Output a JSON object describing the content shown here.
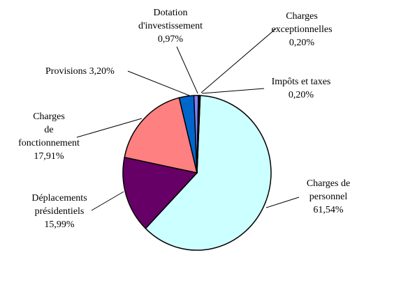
{
  "chart_data": {
    "type": "pie",
    "title": "",
    "slices": [
      {
        "label_lines": [
          "Charges de",
          "personnel"
        ],
        "value_text": "61,54%",
        "value": 61.54,
        "color": "#ccffff"
      },
      {
        "label_lines": [
          "Déplacements",
          "présidentiels"
        ],
        "value_text": "15,99%",
        "value": 15.99,
        "color": "#660066"
      },
      {
        "label_lines": [
          "Charges",
          "de",
          "fonctionnement"
        ],
        "value_text": "17,91%",
        "value": 17.91,
        "color": "#ff8080"
      },
      {
        "label_lines": [
          "Provisions"
        ],
        "value_text": "3,20%",
        "value": 3.2,
        "color": "#0066cc"
      },
      {
        "label_lines": [
          "Dotation",
          "d'investissement"
        ],
        "value_text": "0,97%",
        "value": 0.97,
        "color": "#8080ff"
      },
      {
        "label_lines": [
          "Charges",
          "exceptionnelles"
        ],
        "value_text": "0,20%",
        "value": 0.2,
        "color": "#c0c0c0"
      },
      {
        "label_lines": [
          "Impôts et taxes"
        ],
        "value_text": "0,20%",
        "value": 0.2,
        "color": "#993366"
      }
    ]
  }
}
